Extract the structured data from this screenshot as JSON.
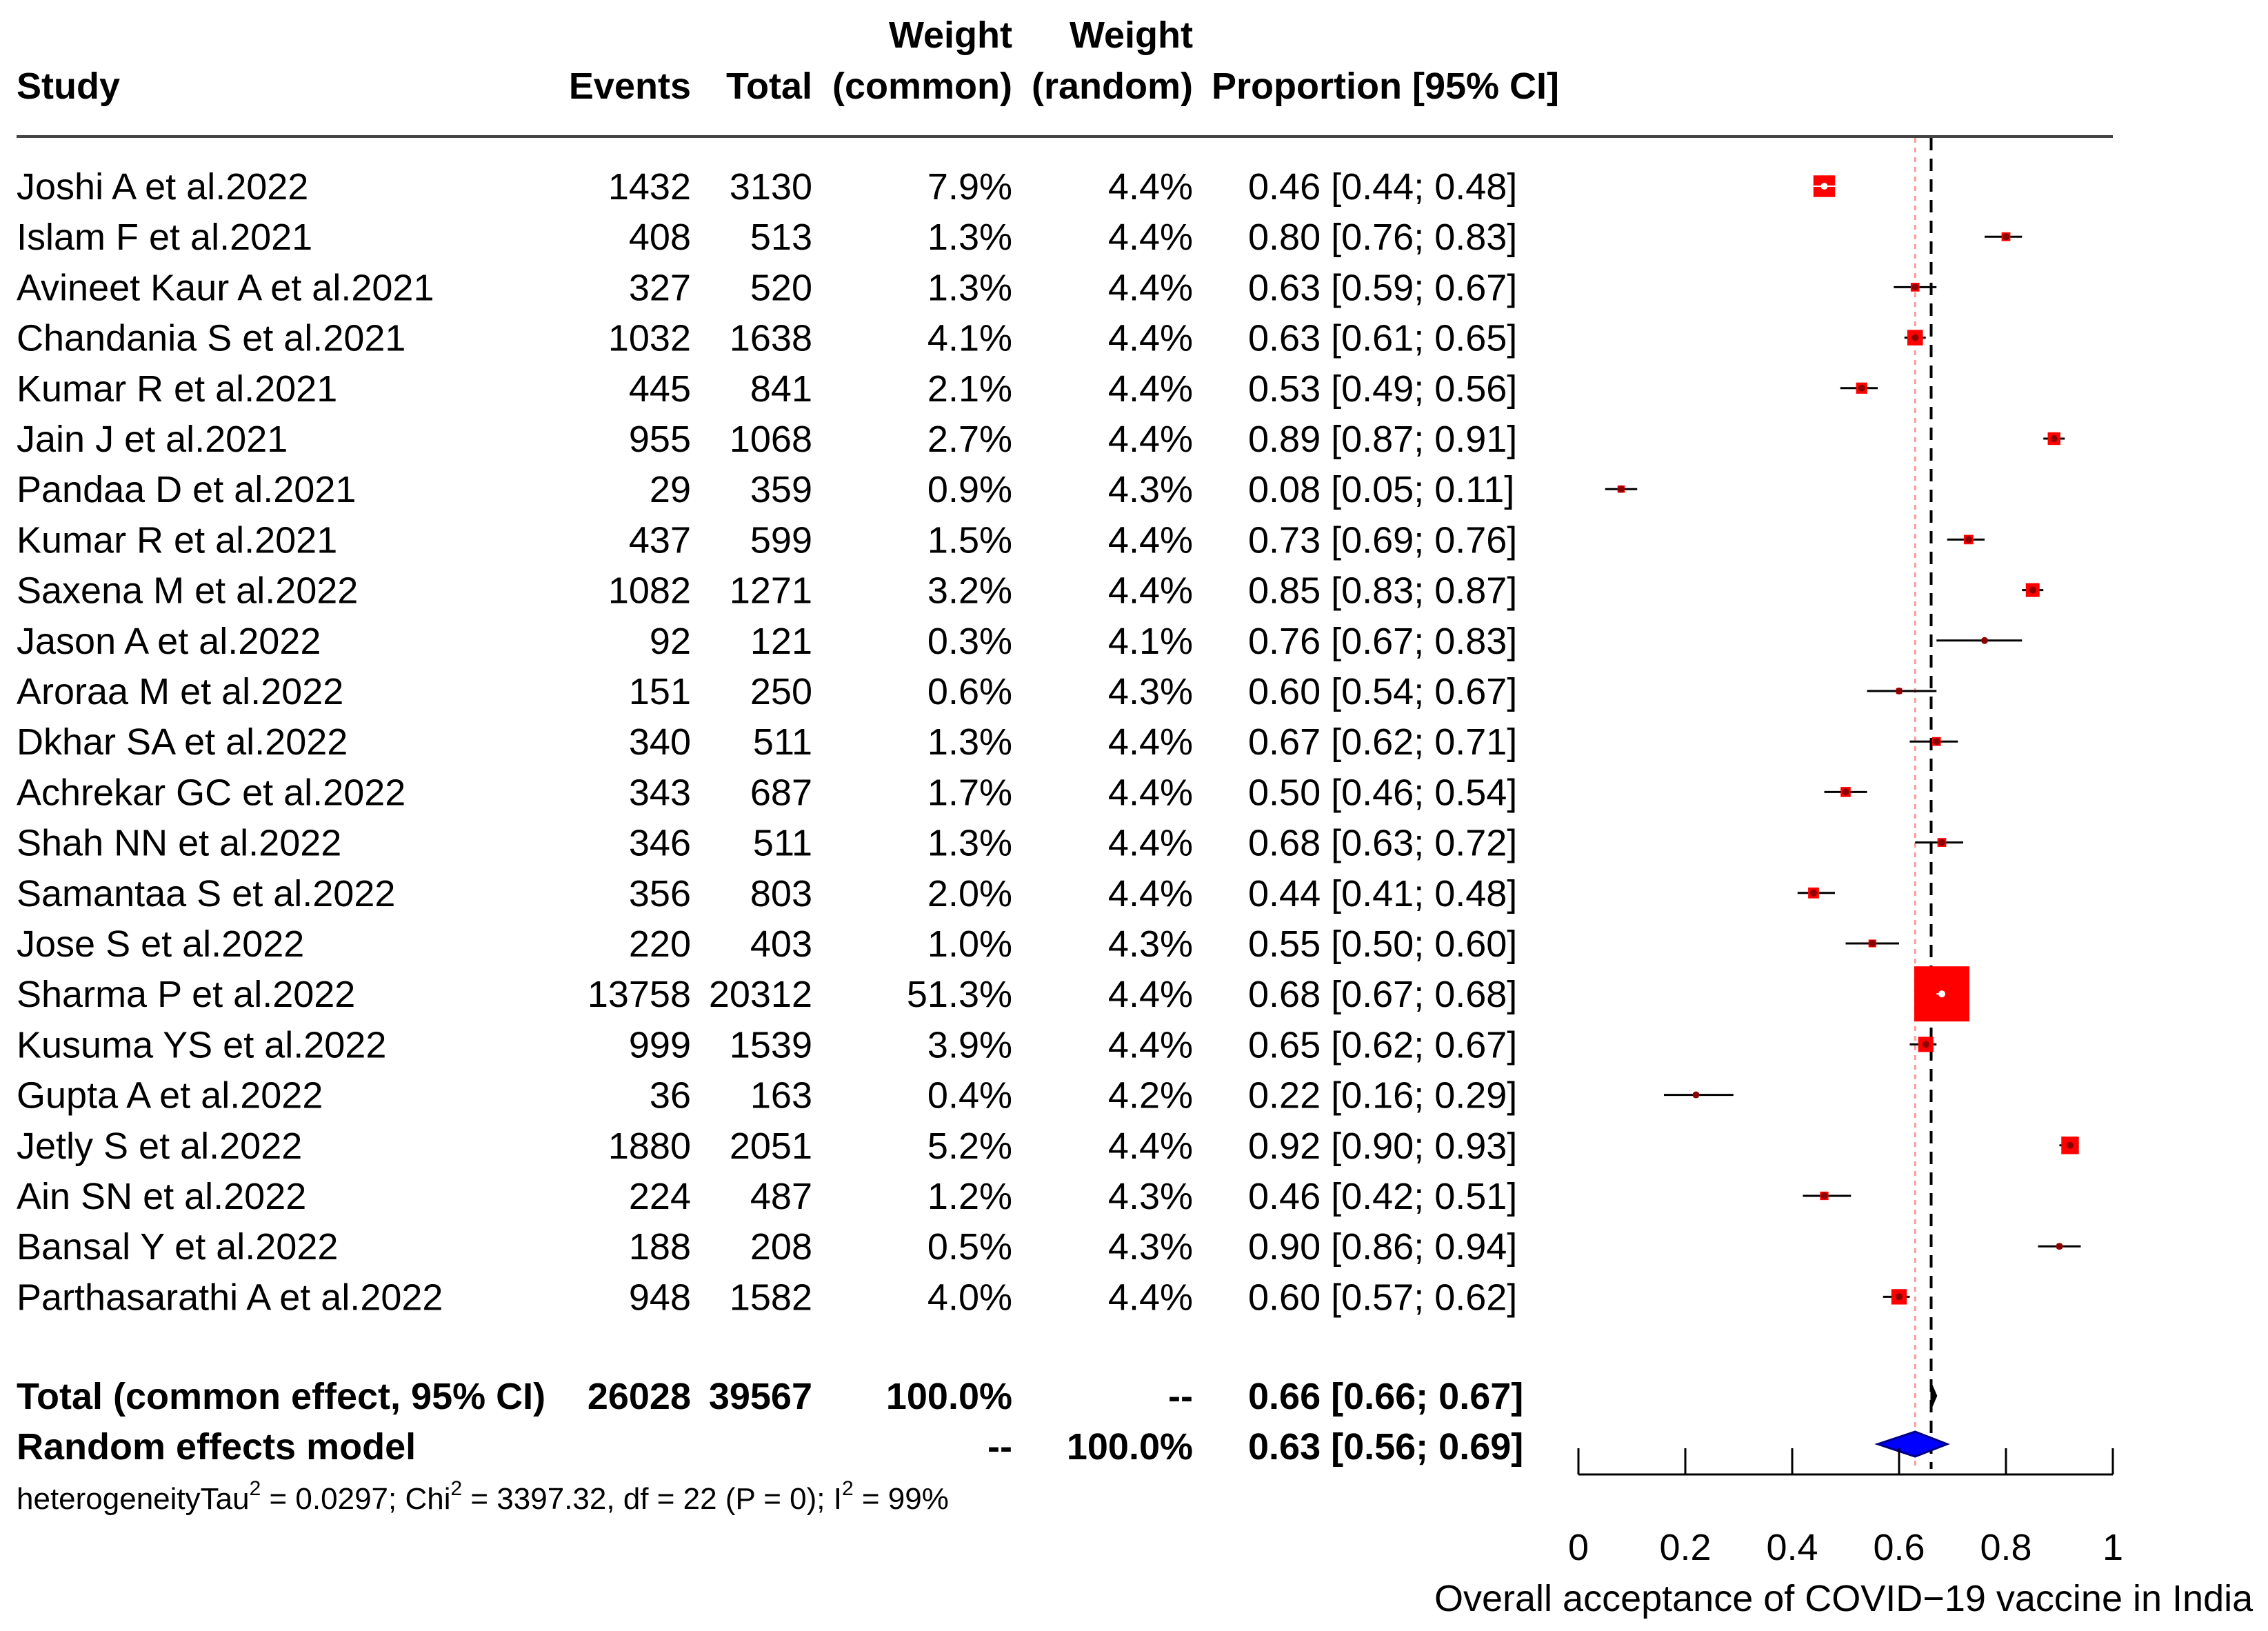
{
  "headers": {
    "study": "Study",
    "events": "Events",
    "total": "Total",
    "weight_common_1": "Weight",
    "weight_common_2": "(common)",
    "weight_random_1": "Weight",
    "weight_random_2": "(random)",
    "proportion": "Proportion [95% CI]"
  },
  "studies": [
    {
      "study": "Joshi A et al.2022",
      "events": "1432",
      "total": "3130",
      "w_common": "7.9%",
      "w_random": "4.4%",
      "ci_text": "0.46 [0.44; 0.48]",
      "est": 0.46,
      "lo": 0.44,
      "hi": 0.48,
      "wc": 7.9
    },
    {
      "study": "Islam F et al.2021",
      "events": "408",
      "total": "513",
      "w_common": "1.3%",
      "w_random": "4.4%",
      "ci_text": "0.80 [0.76; 0.83]",
      "est": 0.8,
      "lo": 0.76,
      "hi": 0.83,
      "wc": 1.3
    },
    {
      "study": "Avineet Kaur A et al.2021",
      "events": "327",
      "total": "520",
      "w_common": "1.3%",
      "w_random": "4.4%",
      "ci_text": "0.63 [0.59; 0.67]",
      "est": 0.63,
      "lo": 0.59,
      "hi": 0.67,
      "wc": 1.3
    },
    {
      "study": "Chandania S et al.2021",
      "events": "1032",
      "total": "1638",
      "w_common": "4.1%",
      "w_random": "4.4%",
      "ci_text": "0.63 [0.61; 0.65]",
      "est": 0.63,
      "lo": 0.61,
      "hi": 0.65,
      "wc": 4.1
    },
    {
      "study": "Kumar R et al.2021",
      "events": "445",
      "total": "841",
      "w_common": "2.1%",
      "w_random": "4.4%",
      "ci_text": "0.53 [0.49; 0.56]",
      "est": 0.53,
      "lo": 0.49,
      "hi": 0.56,
      "wc": 2.1
    },
    {
      "study": "Jain J et al.2021",
      "events": "955",
      "total": "1068",
      "w_common": "2.7%",
      "w_random": "4.4%",
      "ci_text": "0.89 [0.87; 0.91]",
      "est": 0.89,
      "lo": 0.87,
      "hi": 0.91,
      "wc": 2.7
    },
    {
      "study": "Pandaa D et al.2021",
      "events": "29",
      "total": "359",
      "w_common": "0.9%",
      "w_random": "4.3%",
      "ci_text": "0.08 [0.05; 0.11]",
      "est": 0.08,
      "lo": 0.05,
      "hi": 0.11,
      "wc": 0.9
    },
    {
      "study": "Kumar R et al.2021",
      "events": "437",
      "total": "599",
      "w_common": "1.5%",
      "w_random": "4.4%",
      "ci_text": "0.73 [0.69; 0.76]",
      "est": 0.73,
      "lo": 0.69,
      "hi": 0.76,
      "wc": 1.5
    },
    {
      "study": "Saxena M et al.2022",
      "events": "1082",
      "total": "1271",
      "w_common": "3.2%",
      "w_random": "4.4%",
      "ci_text": "0.85 [0.83; 0.87]",
      "est": 0.85,
      "lo": 0.83,
      "hi": 0.87,
      "wc": 3.2
    },
    {
      "study": "Jason A et al.2022",
      "events": "92",
      "total": "121",
      "w_common": "0.3%",
      "w_random": "4.1%",
      "ci_text": "0.76 [0.67; 0.83]",
      "est": 0.76,
      "lo": 0.67,
      "hi": 0.83,
      "wc": 0.3
    },
    {
      "study": "Aroraa M et al.2022",
      "events": "151",
      "total": "250",
      "w_common": "0.6%",
      "w_random": "4.3%",
      "ci_text": "0.60 [0.54; 0.67]",
      "est": 0.6,
      "lo": 0.54,
      "hi": 0.67,
      "wc": 0.6
    },
    {
      "study": "Dkhar SA et al.2022",
      "events": "340",
      "total": "511",
      "w_common": "1.3%",
      "w_random": "4.4%",
      "ci_text": "0.67 [0.62; 0.71]",
      "est": 0.67,
      "lo": 0.62,
      "hi": 0.71,
      "wc": 1.3
    },
    {
      "study": "Achrekar GC et al.2022",
      "events": "343",
      "total": "687",
      "w_common": "1.7%",
      "w_random": "4.4%",
      "ci_text": "0.50 [0.46; 0.54]",
      "est": 0.5,
      "lo": 0.46,
      "hi": 0.54,
      "wc": 1.7
    },
    {
      "study": "Shah NN et al.2022",
      "events": "346",
      "total": "511",
      "w_common": "1.3%",
      "w_random": "4.4%",
      "ci_text": "0.68 [0.63; 0.72]",
      "est": 0.68,
      "lo": 0.63,
      "hi": 0.72,
      "wc": 1.3
    },
    {
      "study": "Samantaa S et al.2022",
      "events": "356",
      "total": "803",
      "w_common": "2.0%",
      "w_random": "4.4%",
      "ci_text": "0.44 [0.41; 0.48]",
      "est": 0.44,
      "lo": 0.41,
      "hi": 0.48,
      "wc": 2.0
    },
    {
      "study": "Jose S et al.2022",
      "events": "220",
      "total": "403",
      "w_common": "1.0%",
      "w_random": "4.3%",
      "ci_text": "0.55 [0.50; 0.60]",
      "est": 0.55,
      "lo": 0.5,
      "hi": 0.6,
      "wc": 1.0
    },
    {
      "study": "Sharma P et al.2022",
      "events": "13758",
      "total": "20312",
      "w_common": "51.3%",
      "w_random": "4.4%",
      "ci_text": "0.68 [0.67; 0.68]",
      "est": 0.68,
      "lo": 0.67,
      "hi": 0.68,
      "wc": 51.3
    },
    {
      "study": "Kusuma YS et al.2022",
      "events": "999",
      "total": "1539",
      "w_common": "3.9%",
      "w_random": "4.4%",
      "ci_text": "0.65 [0.62; 0.67]",
      "est": 0.65,
      "lo": 0.62,
      "hi": 0.67,
      "wc": 3.9
    },
    {
      "study": "Gupta A et al.2022",
      "events": "36",
      "total": "163",
      "w_common": "0.4%",
      "w_random": "4.2%",
      "ci_text": "0.22 [0.16; 0.29]",
      "est": 0.22,
      "lo": 0.16,
      "hi": 0.29,
      "wc": 0.4
    },
    {
      "study": "Jetly S et al.2022",
      "events": "1880",
      "total": "2051",
      "w_common": "5.2%",
      "w_random": "4.4%",
      "ci_text": "0.92 [0.90; 0.93]",
      "est": 0.92,
      "lo": 0.9,
      "hi": 0.93,
      "wc": 5.2
    },
    {
      "study": "Ain SN et al.2022",
      "events": "224",
      "total": "487",
      "w_common": "1.2%",
      "w_random": "4.3%",
      "ci_text": "0.46 [0.42; 0.51]",
      "est": 0.46,
      "lo": 0.42,
      "hi": 0.51,
      "wc": 1.2
    },
    {
      "study": "Bansal Y et al.2022",
      "events": "188",
      "total": "208",
      "w_common": "0.5%",
      "w_random": "4.3%",
      "ci_text": "0.90 [0.86; 0.94]",
      "est": 0.9,
      "lo": 0.86,
      "hi": 0.94,
      "wc": 0.5
    },
    {
      "study": "Parthasarathi A et al.2022",
      "events": "948",
      "total": "1582",
      "w_common": "4.0%",
      "w_random": "4.4%",
      "ci_text": "0.60 [0.57; 0.62]",
      "est": 0.6,
      "lo": 0.57,
      "hi": 0.62,
      "wc": 4.0
    }
  ],
  "summary": {
    "common": {
      "label": "Total (common effect, 95% CI)",
      "events": "26028",
      "total": "39567",
      "w_common": "100.0%",
      "w_random": "--",
      "ci_text": "0.66 [0.66; 0.67]",
      "est": 0.66,
      "lo": 0.66,
      "hi": 0.67
    },
    "random": {
      "label": "Random effects model",
      "events": "",
      "total": "",
      "w_common": "--",
      "w_random": "100.0%",
      "ci_text": "0.63 [0.56; 0.69]",
      "est": 0.63,
      "lo": 0.56,
      "hi": 0.69
    }
  },
  "heterogeneity": {
    "prefix": "heterogeneityTau",
    "sup1": "2",
    "mid1": " = 0.0297; Chi",
    "sup2": "2",
    "mid2": " = 3397.32, df = 22 (P = 0); I",
    "sup3": "2",
    "end": " = 99%"
  },
  "chart_data": {
    "type": "forest",
    "xlabel": "Overall acceptance of COVID−19 vaccine in India",
    "xlim": [
      0,
      1
    ],
    "ticks": [
      0,
      0.2,
      0.4,
      0.6,
      0.8,
      1
    ],
    "tick_labels": [
      "0",
      "0.2",
      "0.4",
      "0.6",
      "0.8",
      "1"
    ],
    "common_line": 0.66,
    "random_line": 0.63,
    "colors": {
      "box": "#ff0000",
      "point": "#8b0000",
      "diamond_fill": "#0000ff",
      "diamond_stroke": "#000080",
      "random_line": "#ff9999"
    }
  }
}
